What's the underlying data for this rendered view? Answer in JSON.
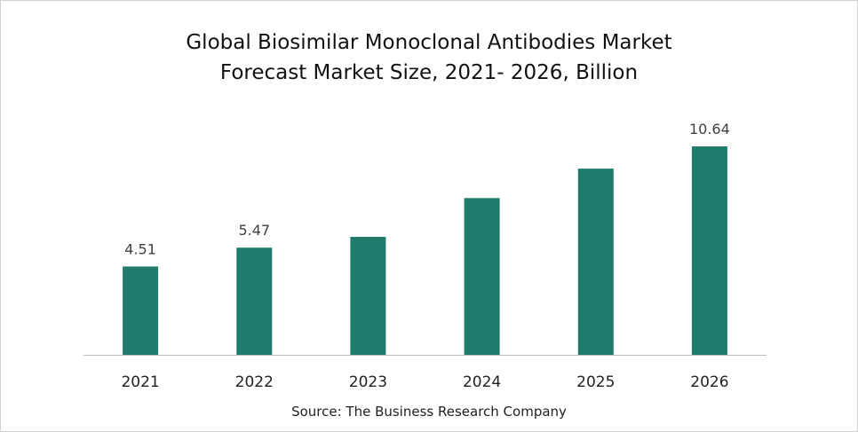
{
  "chart_data": {
    "type": "bar",
    "title_lines": [
      "Global Biosimilar Monoclonal Antibodies Market",
      "Forecast Market Size, 2021- 2026, Billion"
    ],
    "categories": [
      "2021",
      "2022",
      "2023",
      "2024",
      "2025",
      "2026"
    ],
    "values": [
      4.51,
      5.47,
      6.02,
      8.0,
      9.5,
      10.64
    ],
    "data_labels": [
      "4.51",
      "5.47",
      "",
      "",
      "",
      "10.64"
    ],
    "xlabel": "",
    "ylabel": "",
    "ylim": [
      0,
      11
    ],
    "grid": false,
    "legend": "none",
    "bar_color": "#217B6C",
    "source": "Source: The Business Research Company"
  }
}
